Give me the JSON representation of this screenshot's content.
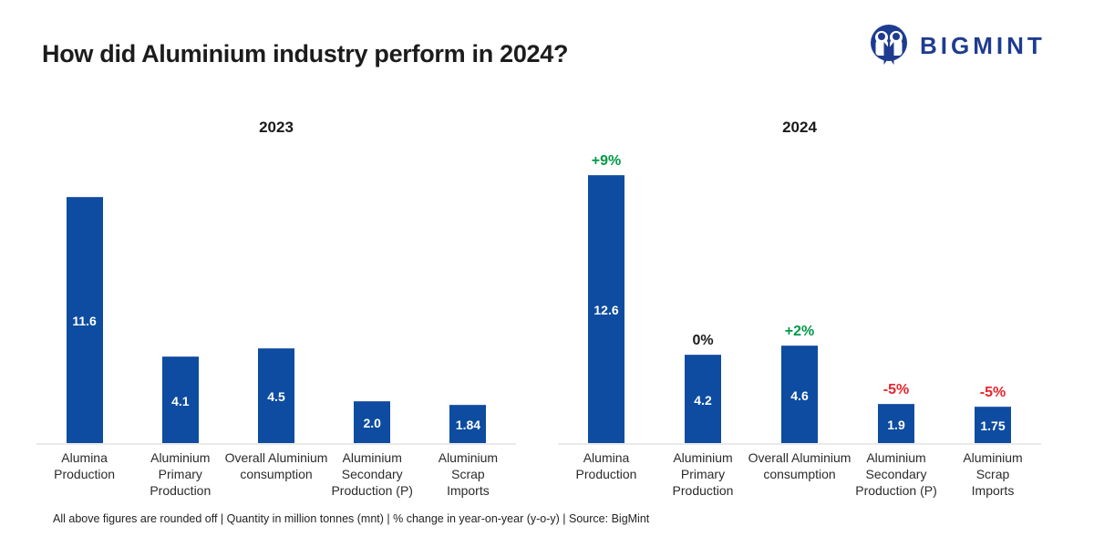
{
  "page": {
    "title": "How did Aluminium industry perform in 2024?",
    "footer": "All above figures are rounded off | Quantity in million tonnes (mnt) | % change in year-on-year (y-o-y) | Source: BigMint"
  },
  "brand": {
    "name": "BIGMINT",
    "logo_icon": "bigmint-two-people-circle-icon",
    "color": "#1e3c8f"
  },
  "colors": {
    "bar": "#0d4ca0",
    "positive": "#009a47",
    "negative": "#e8242b",
    "neutral": "#1c1c1c",
    "axis": "#e9e9e9",
    "value_text": "#ffffff"
  },
  "chart_data": [
    {
      "type": "bar",
      "title": "2023",
      "categories": [
        "Alumina\nProduction",
        "Aluminium\nPrimary\nProduction",
        "Overall Aluminium\nconsumption",
        "Aluminium\nSecondary\nProduction (P)",
        "Aluminium\nScrap\nImports"
      ],
      "values": [
        11.6,
        4.1,
        4.5,
        2.0,
        1.84
      ],
      "value_labels": [
        "11.6",
        "4.1",
        "4.5",
        "2.0",
        "1.84"
      ],
      "xlabel": "",
      "ylabel": "",
      "unit": "million tonnes (mnt)",
      "ylim": [
        0,
        13
      ],
      "grid": false,
      "legend": "none",
      "bar_color": "#0d4ca0"
    },
    {
      "type": "bar",
      "title": "2024",
      "categories": [
        "Alumina\nProduction",
        "Aluminium\nPrimary\nProduction",
        "Overall Aluminium\nconsumption",
        "Aluminium\nSecondary\nProduction (P)",
        "Aluminium\nScrap\nImports"
      ],
      "values": [
        12.6,
        4.2,
        4.6,
        1.9,
        1.75
      ],
      "value_labels": [
        "12.6",
        "4.2",
        "4.6",
        "1.9",
        "1.75"
      ],
      "change_labels": [
        "+9%",
        "0%",
        "+2%",
        "-5%",
        "-5%"
      ],
      "change_directions": [
        "positive",
        "neutral",
        "positive",
        "negative",
        "negative"
      ],
      "xlabel": "",
      "ylabel": "",
      "unit": "million tonnes (mnt)",
      "ylim": [
        0,
        13
      ],
      "grid": false,
      "legend": "none",
      "bar_color": "#0d4ca0"
    }
  ]
}
